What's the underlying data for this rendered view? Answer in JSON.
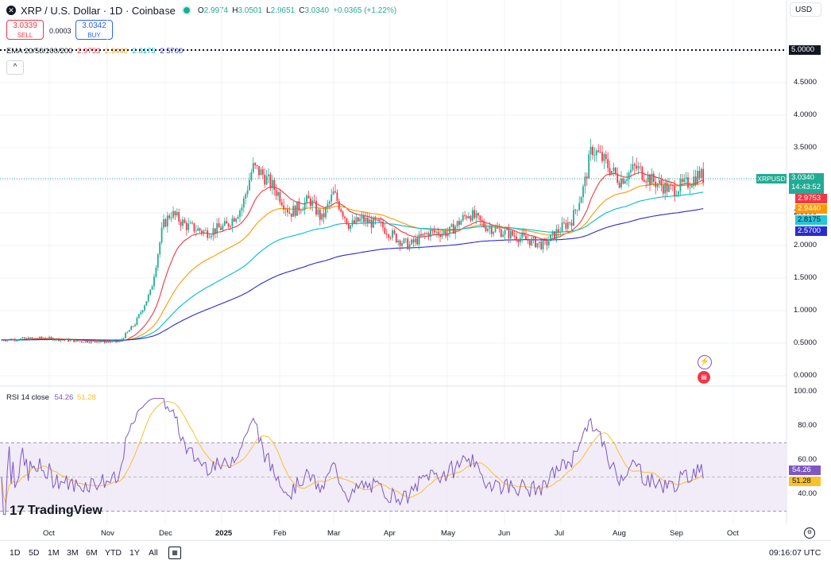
{
  "header": {
    "title": "XRP / U.S. Dollar · 1D · Coinbase",
    "o_label": "O",
    "o_value": "2.9974",
    "h_label": "H",
    "h_value": "3.0501",
    "l_label": "L",
    "l_value": "2.9651",
    "c_label": "C",
    "c_value": "3.0340",
    "change": "+0.0365 (+1.22%)"
  },
  "trade": {
    "sell_price": "3.0339",
    "sell_label": "SELL",
    "spread": "0.0003",
    "buy_price": "3.0342",
    "buy_label": "BUY"
  },
  "currency": "USD",
  "ema_legend": {
    "label": "EMA 20/50/100/200",
    "v20": "2.9753",
    "v50": "2.9440",
    "v100": "2.8175",
    "v200": "2.5700"
  },
  "price_axis": [
    "5.0000",
    "4.5000",
    "4.0000",
    "3.5000",
    "3.0000",
    "2.5000",
    "2.0000",
    "1.5000",
    "1.0000",
    "0.5000",
    "0.0000"
  ],
  "price_tags": {
    "symbol": "XRPUSD",
    "last": "3.0340",
    "countdown": "14:43:52",
    "ema20": "2.9753",
    "ema50": "2.9440",
    "ema100": "2.8175",
    "ema200": "2.5700",
    "line_level": "5.0000"
  },
  "rsi": {
    "label": "RSI 14 close",
    "value": "54.26",
    "ma_value": "51.28",
    "axis": [
      "100.00",
      "80.00",
      "60.00",
      "40.00"
    ]
  },
  "x_axis": [
    "Oct",
    "Nov",
    "Dec",
    "2025",
    "Feb",
    "Mar",
    "Apr",
    "May",
    "Jun",
    "Jul",
    "Aug",
    "Sep",
    "Oct"
  ],
  "timeframes": [
    "1D",
    "5D",
    "1M",
    "3M",
    "6M",
    "YTD",
    "1Y",
    "All"
  ],
  "clock": "09:16:07 UTC",
  "branding": "TradingView",
  "colors": {
    "up": "#22ab94",
    "down": "#f23645",
    "ema20": "#f23645",
    "ema50": "#ff9800",
    "ema100": "#00bcd4",
    "ema200": "#2a2ad0",
    "rsi": "#7e57c2",
    "rsi_ma": "#fbc02d"
  },
  "chart_data": {
    "type": "candlestick",
    "ylim": [
      0,
      5
    ],
    "series": [
      {
        "name": "XRPUSD",
        "x": [
          "2024-09-01",
          "2024-10-01",
          "2024-11-01",
          "2024-11-15",
          "2024-12-01",
          "2024-12-15",
          "2025-01-01",
          "2025-01-15",
          "2025-02-01",
          "2025-02-15",
          "2025-03-01",
          "2025-03-15",
          "2025-04-01",
          "2025-04-15",
          "2025-05-01",
          "2025-05-15",
          "2025-06-01",
          "2025-06-15",
          "2025-07-01",
          "2025-07-15",
          "2025-08-01",
          "2025-08-15",
          "2025-09-01",
          "2025-09-15"
        ],
        "close": [
          0.55,
          0.53,
          0.52,
          1.1,
          2.4,
          2.3,
          2.2,
          3.1,
          2.8,
          2.7,
          2.3,
          2.4,
          2.1,
          2.1,
          2.2,
          2.4,
          2.2,
          2.1,
          2.2,
          3.4,
          3.0,
          3.0,
          2.8,
          3.034
        ]
      },
      {
        "name": "EMA 20",
        "last": 2.9753
      },
      {
        "name": "EMA 50",
        "last": 2.944
      },
      {
        "name": "EMA 100",
        "last": 2.8175
      },
      {
        "name": "EMA 200",
        "last": 2.57
      }
    ],
    "rsi": {
      "name": "RSI 14 close",
      "last": 54.26,
      "ma_last": 51.28,
      "band": [
        30,
        70
      ]
    }
  }
}
